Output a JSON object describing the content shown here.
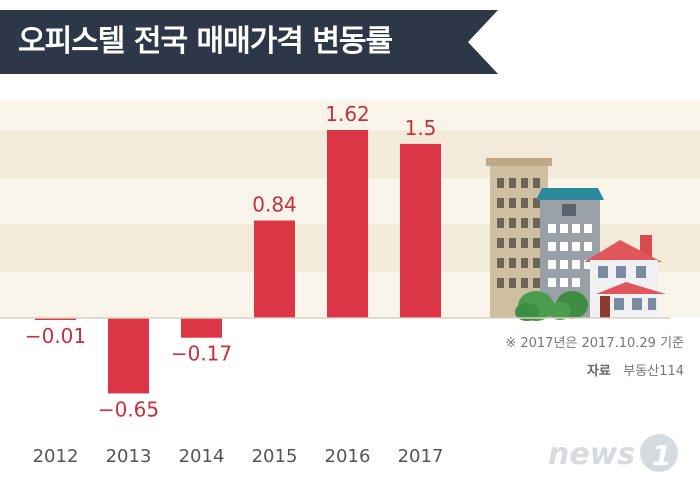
{
  "header": {
    "title": "오피스텔 전국 매매가격 변동률"
  },
  "notes": {
    "basis": "※ 2017년은 2017.10.29 기준",
    "source_label": "자료",
    "source_value": "부동산114"
  },
  "logo": {
    "text": "news",
    "mark": "1"
  },
  "colors": {
    "bar": "#dc3545",
    "banner": "#2d3747",
    "stripe_light": "#faf5ea",
    "stripe_dark": "#f3ebd9",
    "label": "#c8303d"
  },
  "chart_data": {
    "type": "bar",
    "categories": [
      "2012",
      "2013",
      "2014",
      "2015",
      "2016",
      "2017"
    ],
    "values": [
      -0.01,
      -0.65,
      -0.17,
      0.84,
      1.62,
      1.5
    ],
    "labels": [
      "−0.01",
      "−0.65",
      "−0.17",
      "0.84",
      "1.62",
      "1.5"
    ],
    "title": "오피스텔 전국 매매가격 변동률",
    "xlabel": "",
    "ylabel": "",
    "ylim": [
      -0.65,
      1.62
    ],
    "grid": false,
    "legend": "none"
  }
}
